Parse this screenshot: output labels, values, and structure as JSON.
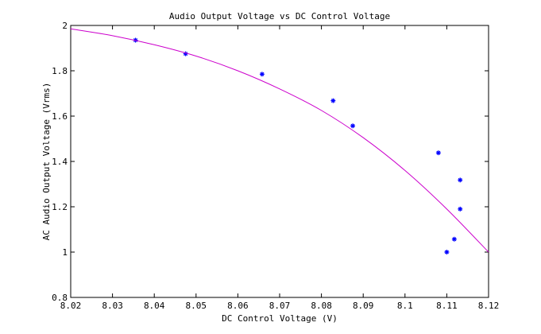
{
  "chart_data": {
    "type": "scatter",
    "title": "Audio Output Voltage vs DC Control Voltage",
    "xlabel": "DC Control Voltage (V)",
    "ylabel": "AC Audio Output Voltage (Vrms)",
    "xlim": [
      8.02,
      8.12
    ],
    "ylim": [
      0.8,
      2.0
    ],
    "xticks": [
      "8.02",
      "8.03",
      "8.04",
      "8.05",
      "8.06",
      "8.07",
      "8.08",
      "8.09",
      "8.1",
      "8.11",
      "8.12"
    ],
    "yticks": [
      "0.8",
      "1",
      "1.2",
      "1.4",
      "1.6",
      "1.8",
      "2"
    ],
    "grid": false,
    "series": [
      {
        "kind": "points",
        "marker": "*",
        "color": "#0000ff",
        "x": [
          8.0355,
          8.0475,
          8.0658,
          8.0828,
          8.0875,
          8.108,
          8.11,
          8.1118,
          8.1132,
          8.1132
        ],
        "y": [
          1.935,
          1.875,
          1.785,
          1.668,
          1.557,
          1.438,
          1.0,
          1.057,
          1.318,
          1.19
        ]
      },
      {
        "kind": "fit-curve",
        "color": "#cc00cc",
        "x": [
          8.02,
          8.03,
          8.04,
          8.05,
          8.06,
          8.07,
          8.08,
          8.09,
          8.1,
          8.11,
          8.12
        ],
        "y": [
          1.985,
          1.955,
          1.915,
          1.865,
          1.8,
          1.72,
          1.625,
          1.505,
          1.36,
          1.19,
          1.0
        ]
      }
    ]
  }
}
